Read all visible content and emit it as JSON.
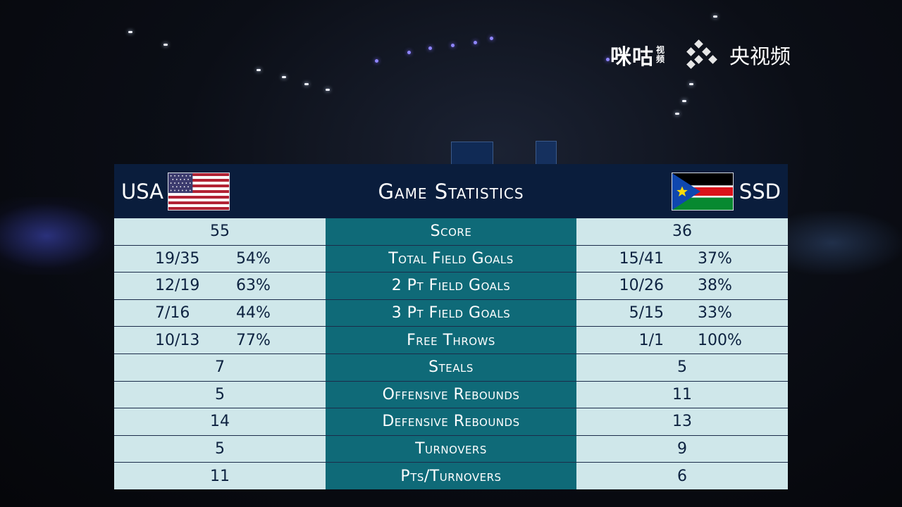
{
  "broadcaster_logos": {
    "migu": {
      "name": "咪咕",
      "sub": "视频"
    },
    "cctv": {
      "name": "央视频"
    }
  },
  "panel": {
    "title": "Game Statistics",
    "team_left": {
      "code": "USA",
      "flag": "usa-flag-icon"
    },
    "team_right": {
      "code": "SSD",
      "flag": "south-sudan-flag-icon"
    }
  },
  "stats": [
    {
      "label": "Score",
      "left": {
        "value": "55"
      },
      "right": {
        "value": "36"
      }
    },
    {
      "label": "Total Field Goals",
      "left": {
        "made": "19/35",
        "pct": "54%"
      },
      "right": {
        "made": "15/41",
        "pct": "37%"
      }
    },
    {
      "label": "2 Pt Field Goals",
      "left": {
        "made": "12/19",
        "pct": "63%"
      },
      "right": {
        "made": "10/26",
        "pct": "38%"
      }
    },
    {
      "label": "3 Pt Field Goals",
      "left": {
        "made": "7/16",
        "pct": "44%"
      },
      "right": {
        "made": "5/15",
        "pct": "33%"
      }
    },
    {
      "label": "Free Throws",
      "left": {
        "made": "10/13",
        "pct": "77%"
      },
      "right": {
        "made": "1/1",
        "pct": "100%"
      }
    },
    {
      "label": "Steals",
      "left": {
        "value": "7"
      },
      "right": {
        "value": "5"
      }
    },
    {
      "label": "Offensive Rebounds",
      "left": {
        "value": "5"
      },
      "right": {
        "value": "11"
      }
    },
    {
      "label": "Defensive Rebounds",
      "left": {
        "value": "14"
      },
      "right": {
        "value": "13"
      }
    },
    {
      "label": "Turnovers",
      "left": {
        "value": "5"
      },
      "right": {
        "value": "9"
      }
    },
    {
      "label": "Pts/Turnovers",
      "left": {
        "value": "11"
      },
      "right": {
        "value": "6"
      }
    }
  ],
  "colors": {
    "header_bg": "#0a1d3c",
    "stat_label_bg": "#0f6a78",
    "stat_value_bg": "#cfe7ea",
    "stat_value_text": "#0d2240"
  }
}
